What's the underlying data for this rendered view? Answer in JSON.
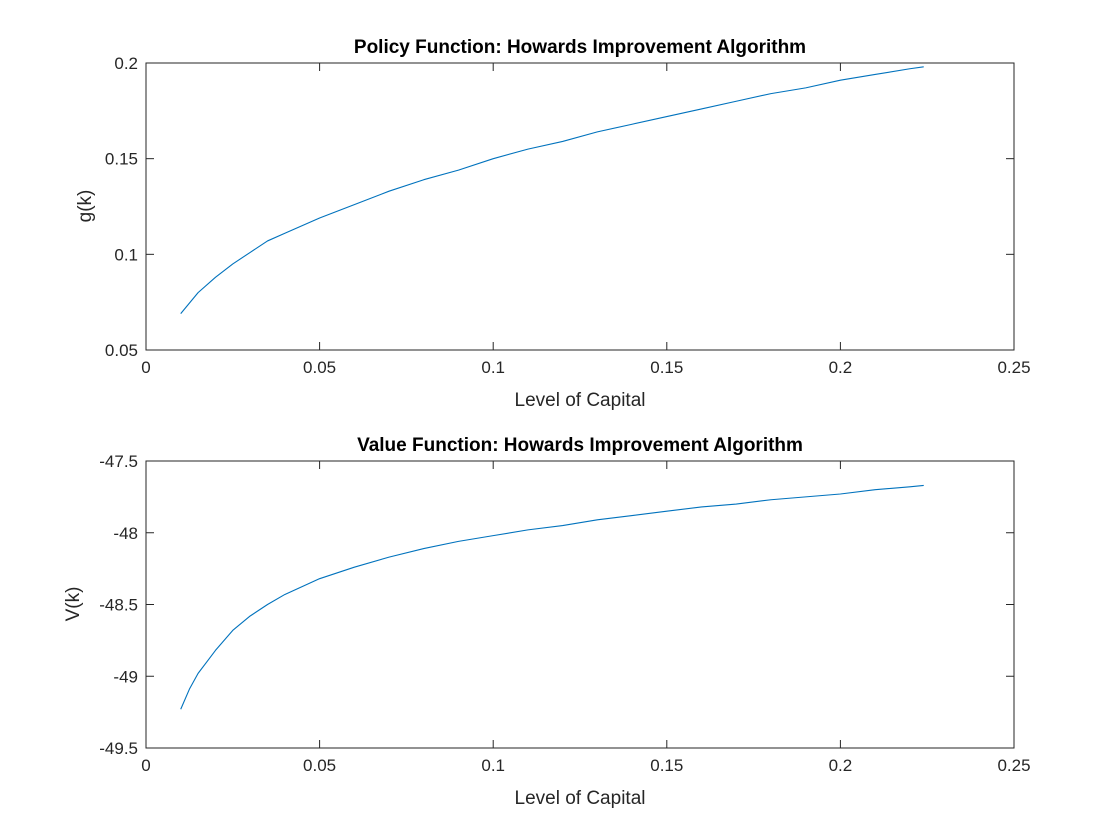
{
  "figure": {
    "background": "#ffffff",
    "axis_color": "#262626",
    "line_color": "#0072BD"
  },
  "chart_data": [
    {
      "type": "line",
      "title": "Policy Function: Howards Improvement Algorithm",
      "xlabel": "Level of Capital",
      "ylabel": "g(k)",
      "xlim": [
        0,
        0.25
      ],
      "ylim": [
        0.05,
        0.2
      ],
      "xticks": [
        0,
        0.05,
        0.1,
        0.15,
        0.2,
        0.25
      ],
      "xtick_labels": [
        "0",
        "0.05",
        "0.1",
        "0.15",
        "0.2",
        "0.25"
      ],
      "yticks": [
        0.05,
        0.1,
        0.15,
        0.2
      ],
      "ytick_labels": [
        "0.05",
        "0.1",
        "0.15",
        "0.2"
      ],
      "grid": false,
      "legend": "none",
      "series": [
        {
          "color": "#0072BD",
          "x": [
            0.01,
            0.015,
            0.02,
            0.025,
            0.03,
            0.035,
            0.04,
            0.05,
            0.06,
            0.07,
            0.08,
            0.09,
            0.1,
            0.11,
            0.12,
            0.13,
            0.14,
            0.15,
            0.16,
            0.17,
            0.18,
            0.19,
            0.2,
            0.21,
            0.22,
            0.224
          ],
          "y": [
            0.069,
            0.08,
            0.088,
            0.095,
            0.101,
            0.107,
            0.111,
            0.119,
            0.126,
            0.133,
            0.139,
            0.144,
            0.15,
            0.155,
            0.159,
            0.164,
            0.168,
            0.172,
            0.176,
            0.18,
            0.184,
            0.187,
            0.191,
            0.194,
            0.197,
            0.198
          ]
        }
      ]
    },
    {
      "type": "line",
      "title": "Value Function: Howards Improvement Algorithm",
      "xlabel": "Level of Capital",
      "ylabel": "V(k)",
      "xlim": [
        0,
        0.25
      ],
      "ylim": [
        -49.5,
        -47.5
      ],
      "xticks": [
        0,
        0.05,
        0.1,
        0.15,
        0.2,
        0.25
      ],
      "xtick_labels": [
        "0",
        "0.05",
        "0.1",
        "0.15",
        "0.2",
        "0.25"
      ],
      "yticks": [
        -49.5,
        -49,
        -48.5,
        -48,
        -47.5
      ],
      "ytick_labels": [
        "-49.5",
        "-49",
        "-48.5",
        "-48",
        "-47.5"
      ],
      "grid": false,
      "legend": "none",
      "series": [
        {
          "color": "#0072BD",
          "x": [
            0.01,
            0.0125,
            0.015,
            0.0175,
            0.02,
            0.025,
            0.03,
            0.035,
            0.04,
            0.05,
            0.06,
            0.07,
            0.08,
            0.09,
            0.1,
            0.11,
            0.12,
            0.13,
            0.14,
            0.15,
            0.16,
            0.17,
            0.18,
            0.19,
            0.2,
            0.21,
            0.22,
            0.224
          ],
          "y": [
            -49.23,
            -49.09,
            -48.98,
            -48.9,
            -48.82,
            -48.68,
            -48.58,
            -48.5,
            -48.43,
            -48.32,
            -48.24,
            -48.17,
            -48.11,
            -48.06,
            -48.02,
            -47.98,
            -47.95,
            -47.91,
            -47.88,
            -47.85,
            -47.82,
            -47.8,
            -47.77,
            -47.75,
            -47.73,
            -47.7,
            -47.68,
            -47.67
          ]
        }
      ]
    }
  ]
}
